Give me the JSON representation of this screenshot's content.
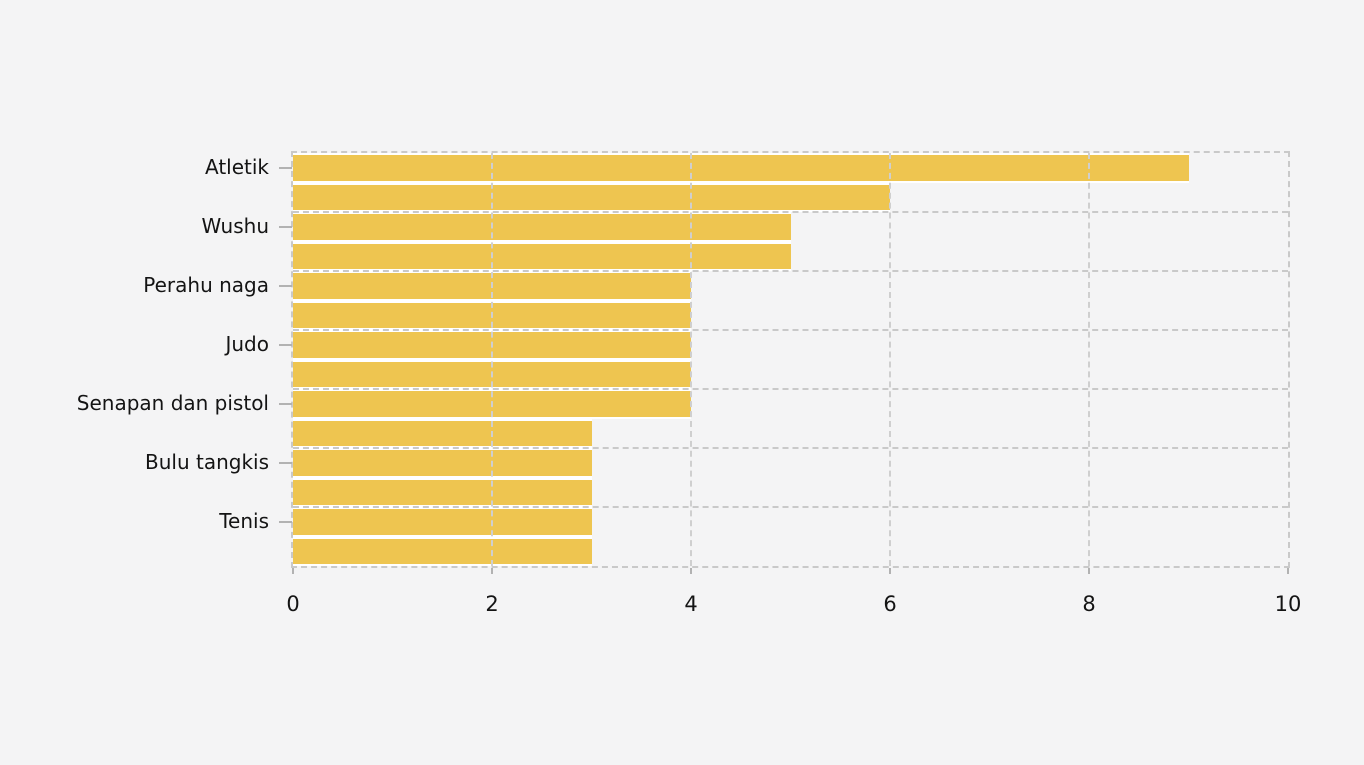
{
  "chart_data": {
    "type": "bar",
    "orientation": "horizontal",
    "title": "",
    "xlabel": "",
    "ylabel": "",
    "categories": [
      "Atletik",
      "",
      "Wushu",
      "",
      "Perahu naga",
      "",
      "Judo",
      "",
      "Senapan dan pistol",
      "",
      "Bulu tangkis",
      "",
      "Tenis",
      ""
    ],
    "values": [
      9,
      6,
      5,
      5,
      4,
      4,
      4,
      4,
      4,
      3,
      3,
      3,
      3,
      3
    ],
    "xlim": [
      0,
      10
    ],
    "xticks": [
      0,
      2,
      4,
      6,
      8,
      10
    ],
    "grid": "dashed",
    "legend": "none",
    "colors": {
      "bar": "#eec550",
      "background": "#f4f4f5",
      "gridline": "#c9c9c9",
      "tick_mark": "#b2b2b2",
      "text": "#141414"
    }
  }
}
